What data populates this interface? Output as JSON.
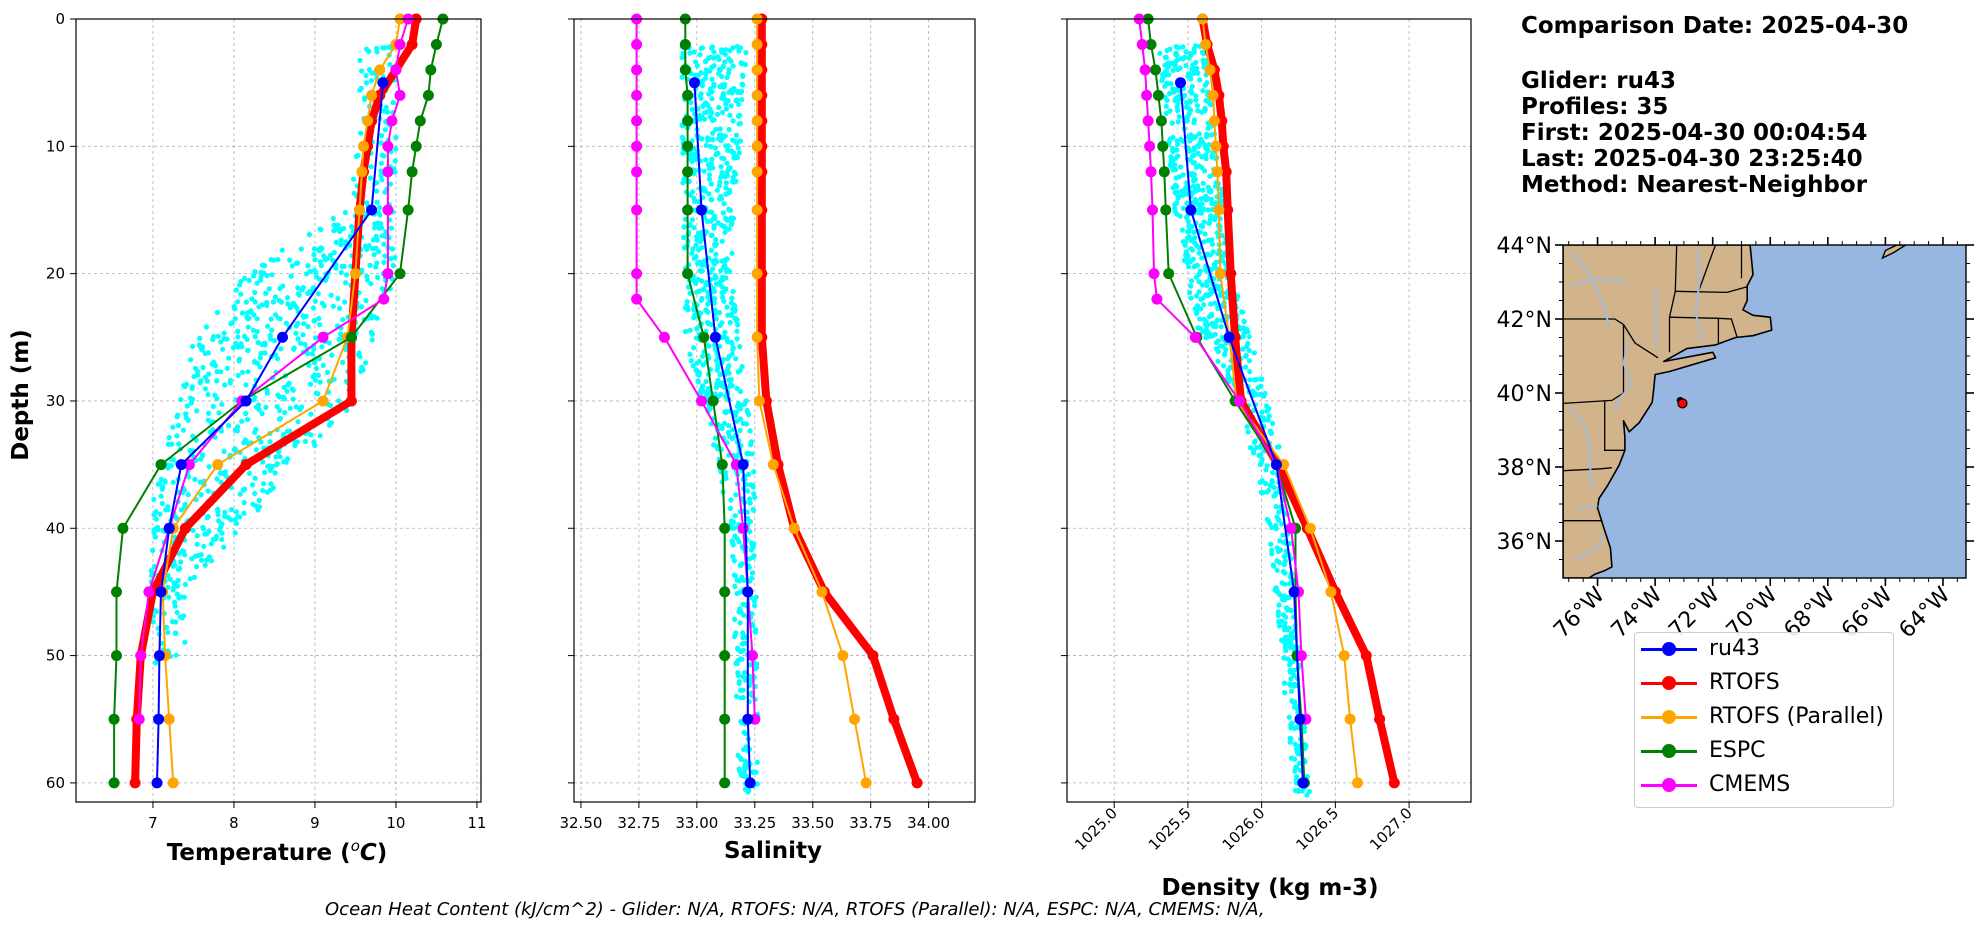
{
  "info": {
    "comparison_date": "Comparison Date: 2025-04-30",
    "glider": "Glider: ru43",
    "profiles": "Profiles: 35",
    "first": "First: 2025-04-30 00:04:54",
    "last": "Last: 2025-04-30 23:25:40",
    "method": "Method: Nearest-Neighbor"
  },
  "footer": "Ocean Heat Content (kJ/cm^2) - Glider: N/A,  RTOFS: N/A,  RTOFS (Parallel): N/A,  ESPC: N/A,  CMEMS: N/A,",
  "colors": {
    "ru43": "#0000ff",
    "RTOFS": "#ff0000",
    "RTOFS (Parallel)": "#ffa500",
    "ESPC": "#008000",
    "CMEMS": "#ff00ff",
    "glider_scatter": "#00ffff",
    "land": "#d2b48c",
    "ocean": "#97b6e1",
    "rivers": "#a3bbd8",
    "grid": "#b0b0b0"
  },
  "legend": [
    {
      "name": "ru43",
      "color_key": "ru43"
    },
    {
      "name": "RTOFS",
      "color_key": "RTOFS"
    },
    {
      "name": "RTOFS (Parallel)",
      "color_key": "RTOFS (Parallel)"
    },
    {
      "name": "ESPC",
      "color_key": "ESPC"
    },
    {
      "name": "CMEMS",
      "color_key": "CMEMS"
    }
  ],
  "chart_data": [
    {
      "type": "line",
      "panel": "temperature",
      "xlabel": "Temperature (°C)",
      "ylabel": "Depth (m)",
      "xlim": [
        6.05,
        11.05
      ],
      "ylim": [
        61.5,
        0
      ],
      "xticks": [
        7,
        8,
        9,
        10,
        11
      ],
      "yticks": [
        0,
        10,
        20,
        30,
        40,
        50,
        60
      ],
      "grid": true,
      "scatter_region": [
        [
          9.55,
          2
        ],
        [
          10.0,
          2
        ],
        [
          10.0,
          20
        ],
        [
          9.5,
          30
        ],
        [
          7.4,
          45
        ],
        [
          7.4,
          51
        ],
        [
          6.9,
          51
        ],
        [
          6.9,
          45
        ],
        [
          7.0,
          38
        ],
        [
          7.5,
          25
        ],
        [
          8.3,
          19
        ],
        [
          9.2,
          16
        ],
        [
          9.5,
          12
        ]
      ],
      "series": [
        {
          "name": "ru43",
          "depth": [
            5,
            15,
            25,
            30,
            35,
            40,
            45,
            50,
            55,
            60
          ],
          "values": [
            9.84,
            9.7,
            8.6,
            8.15,
            7.35,
            7.2,
            7.1,
            7.08,
            7.07,
            7.05
          ]
        },
        {
          "name": "RTOFS",
          "depth": [
            0,
            2,
            4,
            6,
            8,
            10,
            12,
            15,
            20,
            25,
            30,
            35,
            40,
            45,
            50,
            55,
            60
          ],
          "values": [
            10.25,
            10.2,
            10.0,
            9.8,
            9.7,
            9.65,
            9.6,
            9.55,
            9.5,
            9.45,
            9.45,
            8.15,
            7.4,
            7.0,
            6.85,
            6.8,
            6.78
          ]
        },
        {
          "name": "RTOFS (Parallel)",
          "depth": [
            0,
            2,
            4,
            6,
            8,
            10,
            12,
            15,
            20,
            25,
            30,
            35,
            40,
            45,
            50,
            55,
            60
          ],
          "values": [
            10.05,
            10.0,
            9.8,
            9.7,
            9.65,
            9.6,
            9.58,
            9.55,
            9.5,
            9.4,
            9.1,
            7.8,
            7.25,
            7.12,
            7.15,
            7.2,
            7.25
          ]
        },
        {
          "name": "ESPC",
          "depth": [
            0,
            2,
            4,
            6,
            8,
            10,
            12,
            15,
            20,
            25,
            30,
            35,
            40,
            45,
            50,
            55,
            60
          ],
          "values": [
            10.58,
            10.5,
            10.43,
            10.4,
            10.3,
            10.25,
            10.2,
            10.15,
            10.05,
            9.45,
            8.1,
            7.1,
            6.63,
            6.55,
            6.55,
            6.52,
            6.52
          ]
        },
        {
          "name": "CMEMS",
          "depth": [
            0,
            2,
            4,
            6,
            8,
            10,
            12,
            15,
            20,
            22,
            25,
            30,
            35,
            40,
            45,
            50,
            55
          ],
          "values": [
            10.15,
            10.05,
            10.0,
            10.05,
            9.95,
            9.9,
            9.9,
            9.9,
            9.9,
            9.85,
            9.1,
            8.1,
            7.45,
            7.2,
            6.95,
            6.85,
            6.83
          ]
        }
      ]
    },
    {
      "type": "line",
      "panel": "salinity",
      "xlabel": "Salinity",
      "ylabel": "",
      "xlim": [
        32.47,
        34.2
      ],
      "ylim": [
        61.5,
        0
      ],
      "xticks": [
        32.5,
        32.75,
        33.0,
        33.25,
        33.5,
        33.75,
        34.0
      ],
      "xtick_labels": [
        "32.50",
        "32.75",
        "33.00",
        "33.25",
        "33.50",
        "33.75",
        "34.00"
      ],
      "yticks": [
        0,
        10,
        20,
        30,
        40,
        50,
        60
      ],
      "grid": true,
      "scatter_region": [
        [
          32.93,
          2
        ],
        [
          33.22,
          2
        ],
        [
          33.15,
          20
        ],
        [
          33.25,
          35
        ],
        [
          33.27,
          61
        ],
        [
          33.18,
          61
        ],
        [
          33.15,
          40
        ],
        [
          32.95,
          25
        ]
      ],
      "series": [
        {
          "name": "ru43",
          "depth": [
            5,
            15,
            25,
            35,
            45,
            55,
            60
          ],
          "values": [
            32.99,
            33.02,
            33.08,
            33.2,
            33.22,
            33.22,
            33.23
          ]
        },
        {
          "name": "RTOFS",
          "depth": [
            0,
            2,
            4,
            6,
            8,
            10,
            12,
            15,
            20,
            25,
            30,
            35,
            40,
            45,
            50,
            55,
            60
          ],
          "values": [
            33.28,
            33.28,
            33.28,
            33.28,
            33.28,
            33.28,
            33.28,
            33.28,
            33.28,
            33.28,
            33.3,
            33.35,
            33.42,
            33.55,
            33.76,
            33.85,
            33.95
          ]
        },
        {
          "name": "RTOFS (Parallel)",
          "depth": [
            0,
            2,
            4,
            6,
            8,
            10,
            12,
            15,
            20,
            25,
            30,
            35,
            40,
            45,
            50,
            55,
            60
          ],
          "values": [
            33.26,
            33.26,
            33.26,
            33.26,
            33.26,
            33.26,
            33.26,
            33.26,
            33.26,
            33.26,
            33.27,
            33.33,
            33.42,
            33.54,
            33.63,
            33.68,
            33.73
          ]
        },
        {
          "name": "ESPC",
          "depth": [
            0,
            2,
            4,
            6,
            8,
            10,
            12,
            15,
            20,
            25,
            30,
            35,
            40,
            45,
            50,
            55,
            60
          ],
          "values": [
            32.95,
            32.95,
            32.95,
            32.96,
            32.96,
            32.96,
            32.96,
            32.96,
            32.96,
            33.03,
            33.07,
            33.11,
            33.12,
            33.12,
            33.12,
            33.12,
            33.12
          ]
        },
        {
          "name": "CMEMS",
          "depth": [
            0,
            2,
            4,
            6,
            8,
            10,
            12,
            15,
            20,
            22,
            25,
            30,
            35,
            40,
            45,
            50,
            55
          ],
          "values": [
            32.74,
            32.74,
            32.74,
            32.74,
            32.74,
            32.74,
            32.74,
            32.74,
            32.74,
            32.74,
            32.86,
            33.02,
            33.17,
            33.2,
            33.22,
            33.24,
            33.25
          ]
        }
      ]
    },
    {
      "type": "line",
      "panel": "density",
      "xlabel": "Density (kg m-3)",
      "ylabel": "",
      "xlim": [
        1024.68,
        1027.42
      ],
      "ylim": [
        61.5,
        0
      ],
      "xticks": [
        1025.0,
        1025.5,
        1026.0,
        1026.5,
        1027.0
      ],
      "xtick_labels": [
        "1025.0",
        "1025.5",
        "1026.0",
        "1026.5",
        "1027.0"
      ],
      "yticks": [
        0,
        10,
        20,
        30,
        40,
        50,
        60
      ],
      "grid": true,
      "scatter_region": [
        [
          1025.3,
          2
        ],
        [
          1025.62,
          2
        ],
        [
          1025.8,
          20
        ],
        [
          1026.0,
          28
        ],
        [
          1026.15,
          35
        ],
        [
          1026.33,
          61
        ],
        [
          1026.22,
          61
        ],
        [
          1026.05,
          40
        ],
        [
          1025.85,
          30
        ],
        [
          1025.55,
          24
        ],
        [
          1025.4,
          15
        ]
      ],
      "series": [
        {
          "name": "ru43",
          "depth": [
            5,
            15,
            25,
            35,
            45,
            55,
            60
          ],
          "values": [
            1025.45,
            1025.52,
            1025.78,
            1026.1,
            1026.22,
            1026.26,
            1026.28
          ]
        },
        {
          "name": "RTOFS",
          "depth": [
            0,
            2,
            4,
            6,
            8,
            10,
            12,
            15,
            20,
            25,
            30,
            35,
            40,
            45,
            50,
            55,
            60
          ],
          "values": [
            1025.6,
            1025.63,
            1025.68,
            1025.71,
            1025.73,
            1025.74,
            1025.76,
            1025.77,
            1025.79,
            1025.82,
            1025.86,
            1026.11,
            1026.31,
            1026.5,
            1026.71,
            1026.8,
            1026.9
          ]
        },
        {
          "name": "RTOFS (Parallel)",
          "depth": [
            0,
            2,
            4,
            6,
            8,
            10,
            12,
            15,
            20,
            25,
            30,
            35,
            40,
            45,
            50,
            55,
            60
          ],
          "values": [
            1025.6,
            1025.62,
            1025.65,
            1025.67,
            1025.68,
            1025.69,
            1025.7,
            1025.71,
            1025.72,
            1025.78,
            1025.83,
            1026.15,
            1026.33,
            1026.47,
            1026.56,
            1026.6,
            1026.65
          ]
        },
        {
          "name": "ESPC",
          "depth": [
            0,
            2,
            4,
            6,
            8,
            10,
            12,
            15,
            20,
            25,
            30,
            35,
            40,
            45,
            50,
            55,
            60
          ],
          "values": [
            1025.23,
            1025.25,
            1025.28,
            1025.3,
            1025.32,
            1025.33,
            1025.34,
            1025.35,
            1025.37,
            1025.56,
            1025.82,
            1026.1,
            1026.23,
            1026.23,
            1026.24,
            1026.27,
            1026.29
          ]
        },
        {
          "name": "CMEMS",
          "depth": [
            0,
            2,
            4,
            6,
            8,
            10,
            12,
            15,
            20,
            22,
            25,
            30,
            35,
            40,
            45,
            50,
            55
          ],
          "values": [
            1025.17,
            1025.19,
            1025.21,
            1025.22,
            1025.23,
            1025.24,
            1025.25,
            1025.26,
            1025.27,
            1025.29,
            1025.55,
            1025.85,
            1026.1,
            1026.2,
            1026.25,
            1026.27,
            1026.3
          ]
        }
      ]
    },
    {
      "type": "map",
      "panel": "map",
      "lon_range": [
        -77.2,
        -63.2
      ],
      "lat_range": [
        35.0,
        44.0
      ],
      "xticks": [
        -76,
        -74,
        -72,
        -70,
        -68,
        -66,
        -64
      ],
      "xtick_labels": [
        "76°W",
        "74°W",
        "72°W",
        "70°W",
        "68°W",
        "66°W",
        "64°W"
      ],
      "yticks": [
        36,
        38,
        40,
        42,
        44
      ],
      "ytick_labels": [
        "36°N",
        "38°N",
        "40°N",
        "42°N",
        "44°N"
      ],
      "glider_track": {
        "lon": -73.05,
        "lat": 39.72
      },
      "coast": [
        [
          -77.2,
          44.0
        ],
        [
          -70.7,
          44.0
        ],
        [
          -70.6,
          43.2
        ],
        [
          -70.8,
          42.9
        ],
        [
          -70.8,
          42.5
        ],
        [
          -70.95,
          42.25
        ],
        [
          -70.6,
          42.1
        ],
        [
          -70.0,
          42.05
        ],
        [
          -69.95,
          41.7
        ],
        [
          -70.6,
          41.55
        ],
        [
          -71.2,
          41.5
        ],
        [
          -71.9,
          41.3
        ],
        [
          -72.9,
          41.2
        ],
        [
          -73.7,
          40.85
        ],
        [
          -72.0,
          41.1
        ],
        [
          -71.9,
          40.95
        ],
        [
          -73.5,
          40.58
        ],
        [
          -74.0,
          40.5
        ],
        [
          -74.05,
          40.1
        ],
        [
          -74.1,
          39.75
        ],
        [
          -74.55,
          39.2
        ],
        [
          -74.9,
          38.95
        ],
        [
          -75.1,
          39.25
        ],
        [
          -75.05,
          38.8
        ],
        [
          -75.05,
          38.45
        ],
        [
          -75.25,
          38.05
        ],
        [
          -75.65,
          37.5
        ],
        [
          -75.95,
          37.15
        ],
        [
          -76.0,
          36.9
        ],
        [
          -75.8,
          36.4
        ],
        [
          -75.55,
          35.8
        ],
        [
          -75.5,
          35.3
        ],
        [
          -75.75,
          35.2
        ],
        [
          -76.1,
          35.1
        ],
        [
          -76.3,
          35.0
        ],
        [
          -77.2,
          35.0
        ]
      ],
      "nova_scotia": [
        [
          -65.3,
          44.0
        ],
        [
          -65.7,
          43.8
        ],
        [
          -66.1,
          43.65
        ],
        [
          -66.0,
          43.85
        ],
        [
          -65.6,
          44.0
        ]
      ]
    }
  ]
}
